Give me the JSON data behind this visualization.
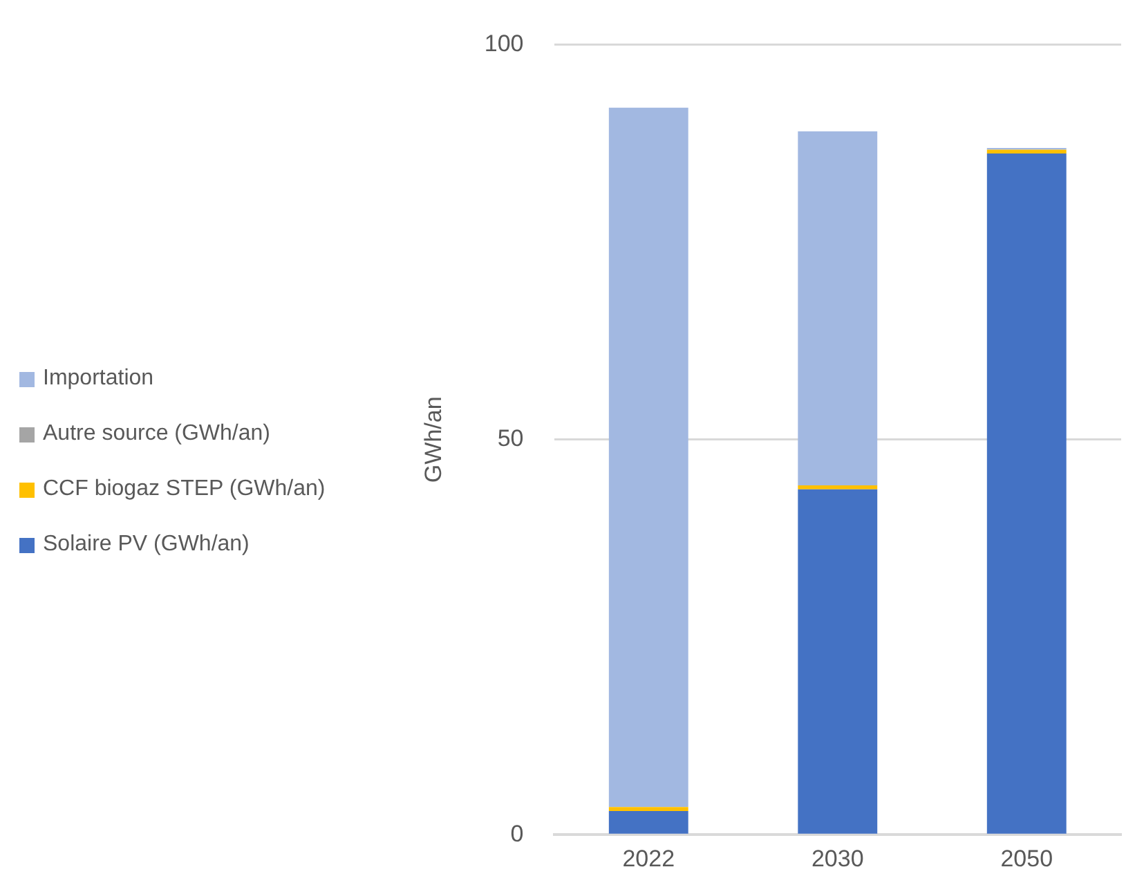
{
  "chart_data": {
    "type": "bar",
    "stacked": true,
    "ylabel": "GWh/an",
    "categories": [
      "2022",
      "2030",
      "2050"
    ],
    "series": [
      {
        "name": "Solaire PV (GWh/an)",
        "color": "#4472c4",
        "values": [
          3,
          43.7,
          86.2
        ]
      },
      {
        "name": "CCF biogaz STEP (GWh/an)",
        "color": "#ffc000",
        "values": [
          0.5,
          0.5,
          0.5
        ]
      },
      {
        "name": "Autre source (GWh/an)",
        "color": "#a5a5a5",
        "values": [
          0,
          0,
          0
        ]
      },
      {
        "name": "Importation",
        "color": "#a2b8e1",
        "values": [
          88.5,
          44.8,
          0.2
        ]
      }
    ],
    "ylim": [
      0,
      100
    ],
    "yticks": [
      0,
      50,
      100
    ],
    "grid": "y",
    "legend": "left"
  }
}
